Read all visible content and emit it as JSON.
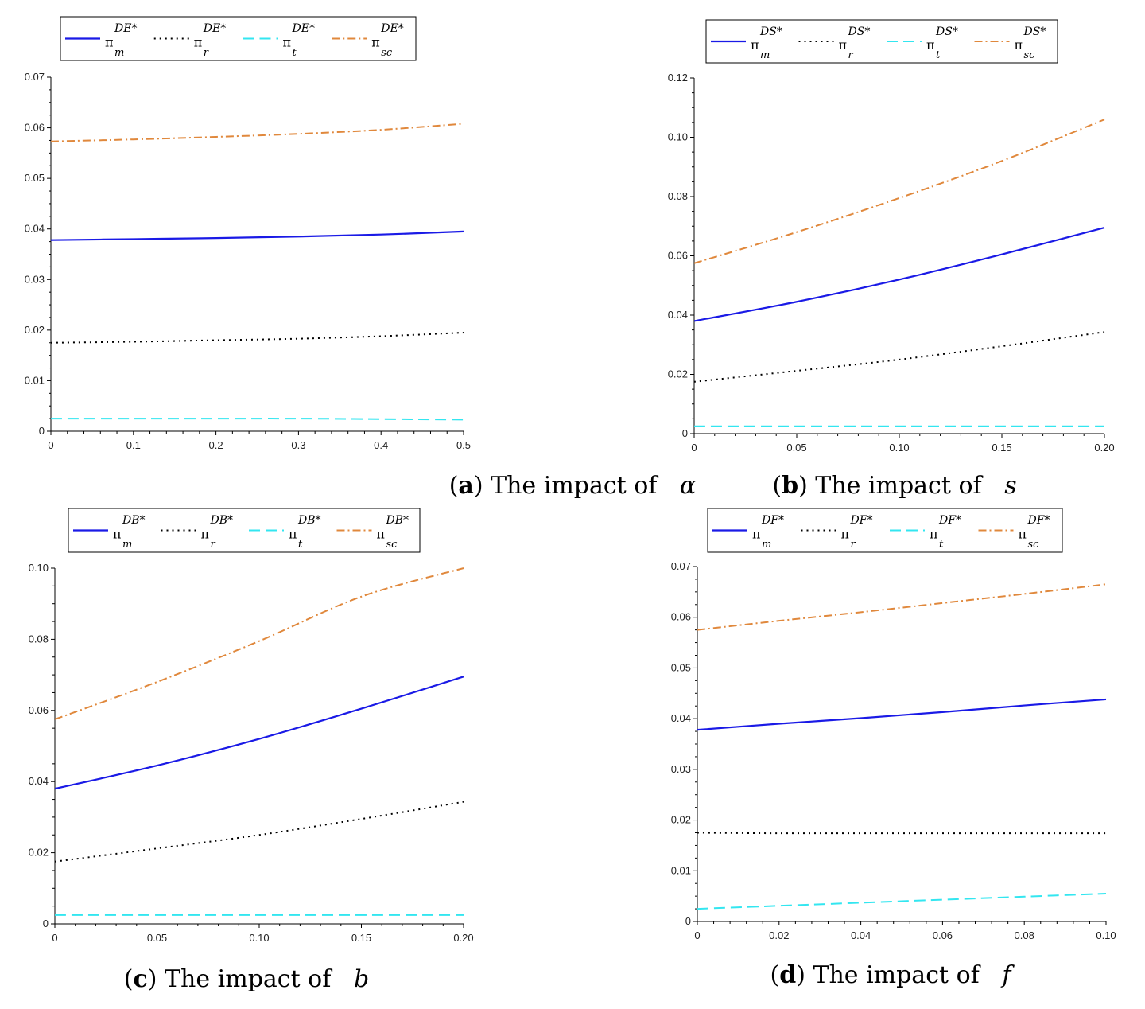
{
  "colors": {
    "pi_m": "#1a1ae6",
    "pi_r": "#000000",
    "pi_t": "#33e6f0",
    "pi_sc": "#e0883c"
  },
  "chart_data": [
    {
      "id": "a",
      "type": "line",
      "caption": {
        "letter": "a",
        "text": " The impact of ",
        "symbol": "α"
      },
      "legend": {
        "superscript": "DE*",
        "entries": [
          {
            "base": "π",
            "sub": "m"
          },
          {
            "base": "π",
            "sub": "r"
          },
          {
            "base": "π",
            "sub": "t"
          },
          {
            "base": "π",
            "sub": "sc"
          }
        ]
      },
      "xlim": [
        0,
        0.5
      ],
      "ylim": [
        0,
        0.07
      ],
      "xticks": [
        {
          "v": 0,
          "label": "0"
        },
        {
          "v": 0.1,
          "label": "0.1"
        },
        {
          "v": 0.2,
          "label": "0.2"
        },
        {
          "v": 0.3,
          "label": "0.3"
        },
        {
          "v": 0.4,
          "label": "0.4"
        },
        {
          "v": 0.5,
          "label": "0.5"
        }
      ],
      "yticks": [
        {
          "v": 0,
          "label": "0"
        },
        {
          "v": 0.01,
          "label": "0.01"
        },
        {
          "v": 0.02,
          "label": "0.02"
        },
        {
          "v": 0.03,
          "label": "0.03"
        },
        {
          "v": 0.04,
          "label": "0.04"
        },
        {
          "v": 0.05,
          "label": "0.05"
        },
        {
          "v": 0.06,
          "label": "0.06"
        },
        {
          "v": 0.07,
          "label": "0.07"
        }
      ],
      "x": [
        0,
        0.1,
        0.2,
        0.3,
        0.4,
        0.5
      ],
      "series": [
        {
          "key": "pi_m",
          "values": [
            0.0378,
            0.038,
            0.0382,
            0.0385,
            0.0389,
            0.0395
          ]
        },
        {
          "key": "pi_r",
          "values": [
            0.0175,
            0.0177,
            0.018,
            0.0183,
            0.0188,
            0.0195
          ]
        },
        {
          "key": "pi_t",
          "values": [
            0.0025,
            0.0025,
            0.0025,
            0.0025,
            0.0024,
            0.0023
          ]
        },
        {
          "key": "pi_sc",
          "values": [
            0.0573,
            0.0577,
            0.0582,
            0.0588,
            0.0596,
            0.0608
          ]
        }
      ]
    },
    {
      "id": "b",
      "type": "line",
      "caption": {
        "letter": "b",
        "text": " The impact of ",
        "symbol": "s"
      },
      "legend": {
        "superscript": "DS*",
        "entries": [
          {
            "base": "π",
            "sub": "m"
          },
          {
            "base": "π",
            "sub": "r"
          },
          {
            "base": "π",
            "sub": "t"
          },
          {
            "base": "π",
            "sub": "sc"
          }
        ]
      },
      "xlim": [
        0,
        0.2
      ],
      "ylim": [
        0,
        0.12
      ],
      "xticks": [
        {
          "v": 0,
          "label": "0"
        },
        {
          "v": 0.05,
          "label": "0.05"
        },
        {
          "v": 0.1,
          "label": "0.10"
        },
        {
          "v": 0.15,
          "label": "0.15"
        },
        {
          "v": 0.2,
          "label": "0.20"
        }
      ],
      "yticks": [
        {
          "v": 0,
          "label": "0"
        },
        {
          "v": 0.02,
          "label": "0.02"
        },
        {
          "v": 0.04,
          "label": "0.04"
        },
        {
          "v": 0.06,
          "label": "0.06"
        },
        {
          "v": 0.08,
          "label": "0.08"
        },
        {
          "v": 0.1,
          "label": "0.10"
        },
        {
          "v": 0.12,
          "label": "0.12"
        }
      ],
      "x": [
        0,
        0.05,
        0.1,
        0.15,
        0.2
      ],
      "series": [
        {
          "key": "pi_m",
          "values": [
            0.038,
            0.0445,
            0.052,
            0.0605,
            0.0695
          ]
        },
        {
          "key": "pi_r",
          "values": [
            0.0175,
            0.0212,
            0.025,
            0.0295,
            0.0343
          ]
        },
        {
          "key": "pi_t",
          "values": [
            0.0025,
            0.0025,
            0.0025,
            0.0025,
            0.0025
          ]
        },
        {
          "key": "pi_sc",
          "values": [
            0.0575,
            0.068,
            0.0795,
            0.092,
            0.106
          ]
        }
      ]
    },
    {
      "id": "c",
      "type": "line",
      "caption": {
        "letter": "c",
        "text": " The impact of ",
        "symbol": "b"
      },
      "legend": {
        "superscript": "DB*",
        "entries": [
          {
            "base": "π",
            "sub": "m"
          },
          {
            "base": "π",
            "sub": "r"
          },
          {
            "base": "π",
            "sub": "t"
          },
          {
            "base": "π",
            "sub": "sc"
          }
        ]
      },
      "xlim": [
        0,
        0.2
      ],
      "ylim": [
        0,
        0.1
      ],
      "xticks": [
        {
          "v": 0,
          "label": "0"
        },
        {
          "v": 0.05,
          "label": "0.05"
        },
        {
          "v": 0.1,
          "label": "0.10"
        },
        {
          "v": 0.15,
          "label": "0.15"
        },
        {
          "v": 0.2,
          "label": "0.20"
        }
      ],
      "yticks": [
        {
          "v": 0,
          "label": "0"
        },
        {
          "v": 0.02,
          "label": "0.02"
        },
        {
          "v": 0.04,
          "label": "0.04"
        },
        {
          "v": 0.06,
          "label": "0.06"
        },
        {
          "v": 0.08,
          "label": "0.08"
        },
        {
          "v": 0.1,
          "label": "0.10"
        }
      ],
      "x": [
        0,
        0.05,
        0.1,
        0.15,
        0.2
      ],
      "series": [
        {
          "key": "pi_m",
          "values": [
            0.038,
            0.0445,
            0.052,
            0.0605,
            0.0695
          ]
        },
        {
          "key": "pi_r",
          "values": [
            0.0175,
            0.0212,
            0.025,
            0.0295,
            0.0343
          ]
        },
        {
          "key": "pi_t",
          "values": [
            0.0025,
            0.0025,
            0.0025,
            0.0025,
            0.0025
          ]
        },
        {
          "key": "pi_sc",
          "values": [
            0.0575,
            0.068,
            0.0795,
            0.092,
            0.1
          ]
        }
      ]
    },
    {
      "id": "d",
      "type": "line",
      "caption": {
        "letter": "d",
        "text": " The impact of ",
        "symbol": "f"
      },
      "legend": {
        "superscript": "DF*",
        "entries": [
          {
            "base": "π",
            "sub": "m"
          },
          {
            "base": "π",
            "sub": "r"
          },
          {
            "base": "π",
            "sub": "t"
          },
          {
            "base": "π",
            "sub": "sc"
          }
        ]
      },
      "xlim": [
        0,
        0.1
      ],
      "ylim": [
        0,
        0.07
      ],
      "xticks": [
        {
          "v": 0,
          "label": "0"
        },
        {
          "v": 0.02,
          "label": "0.02"
        },
        {
          "v": 0.04,
          "label": "0.04"
        },
        {
          "v": 0.06,
          "label": "0.06"
        },
        {
          "v": 0.08,
          "label": "0.08"
        },
        {
          "v": 0.1,
          "label": "0.10"
        }
      ],
      "yticks": [
        {
          "v": 0,
          "label": "0"
        },
        {
          "v": 0.01,
          "label": "0.01"
        },
        {
          "v": 0.02,
          "label": "0.02"
        },
        {
          "v": 0.03,
          "label": "0.03"
        },
        {
          "v": 0.04,
          "label": "0.04"
        },
        {
          "v": 0.05,
          "label": "0.05"
        },
        {
          "v": 0.06,
          "label": "0.06"
        },
        {
          "v": 0.07,
          "label": "0.07"
        }
      ],
      "x": [
        0,
        0.02,
        0.04,
        0.06,
        0.08,
        0.1
      ],
      "series": [
        {
          "key": "pi_m",
          "values": [
            0.0378,
            0.039,
            0.0401,
            0.0413,
            0.0426,
            0.0438
          ]
        },
        {
          "key": "pi_r",
          "values": [
            0.0175,
            0.0174,
            0.0174,
            0.0174,
            0.0174,
            0.0174
          ]
        },
        {
          "key": "pi_t",
          "values": [
            0.0025,
            0.0031,
            0.0037,
            0.0043,
            0.0049,
            0.0055
          ]
        },
        {
          "key": "pi_sc",
          "values": [
            0.0575,
            0.0593,
            0.061,
            0.0628,
            0.0646,
            0.0665
          ]
        }
      ]
    }
  ]
}
